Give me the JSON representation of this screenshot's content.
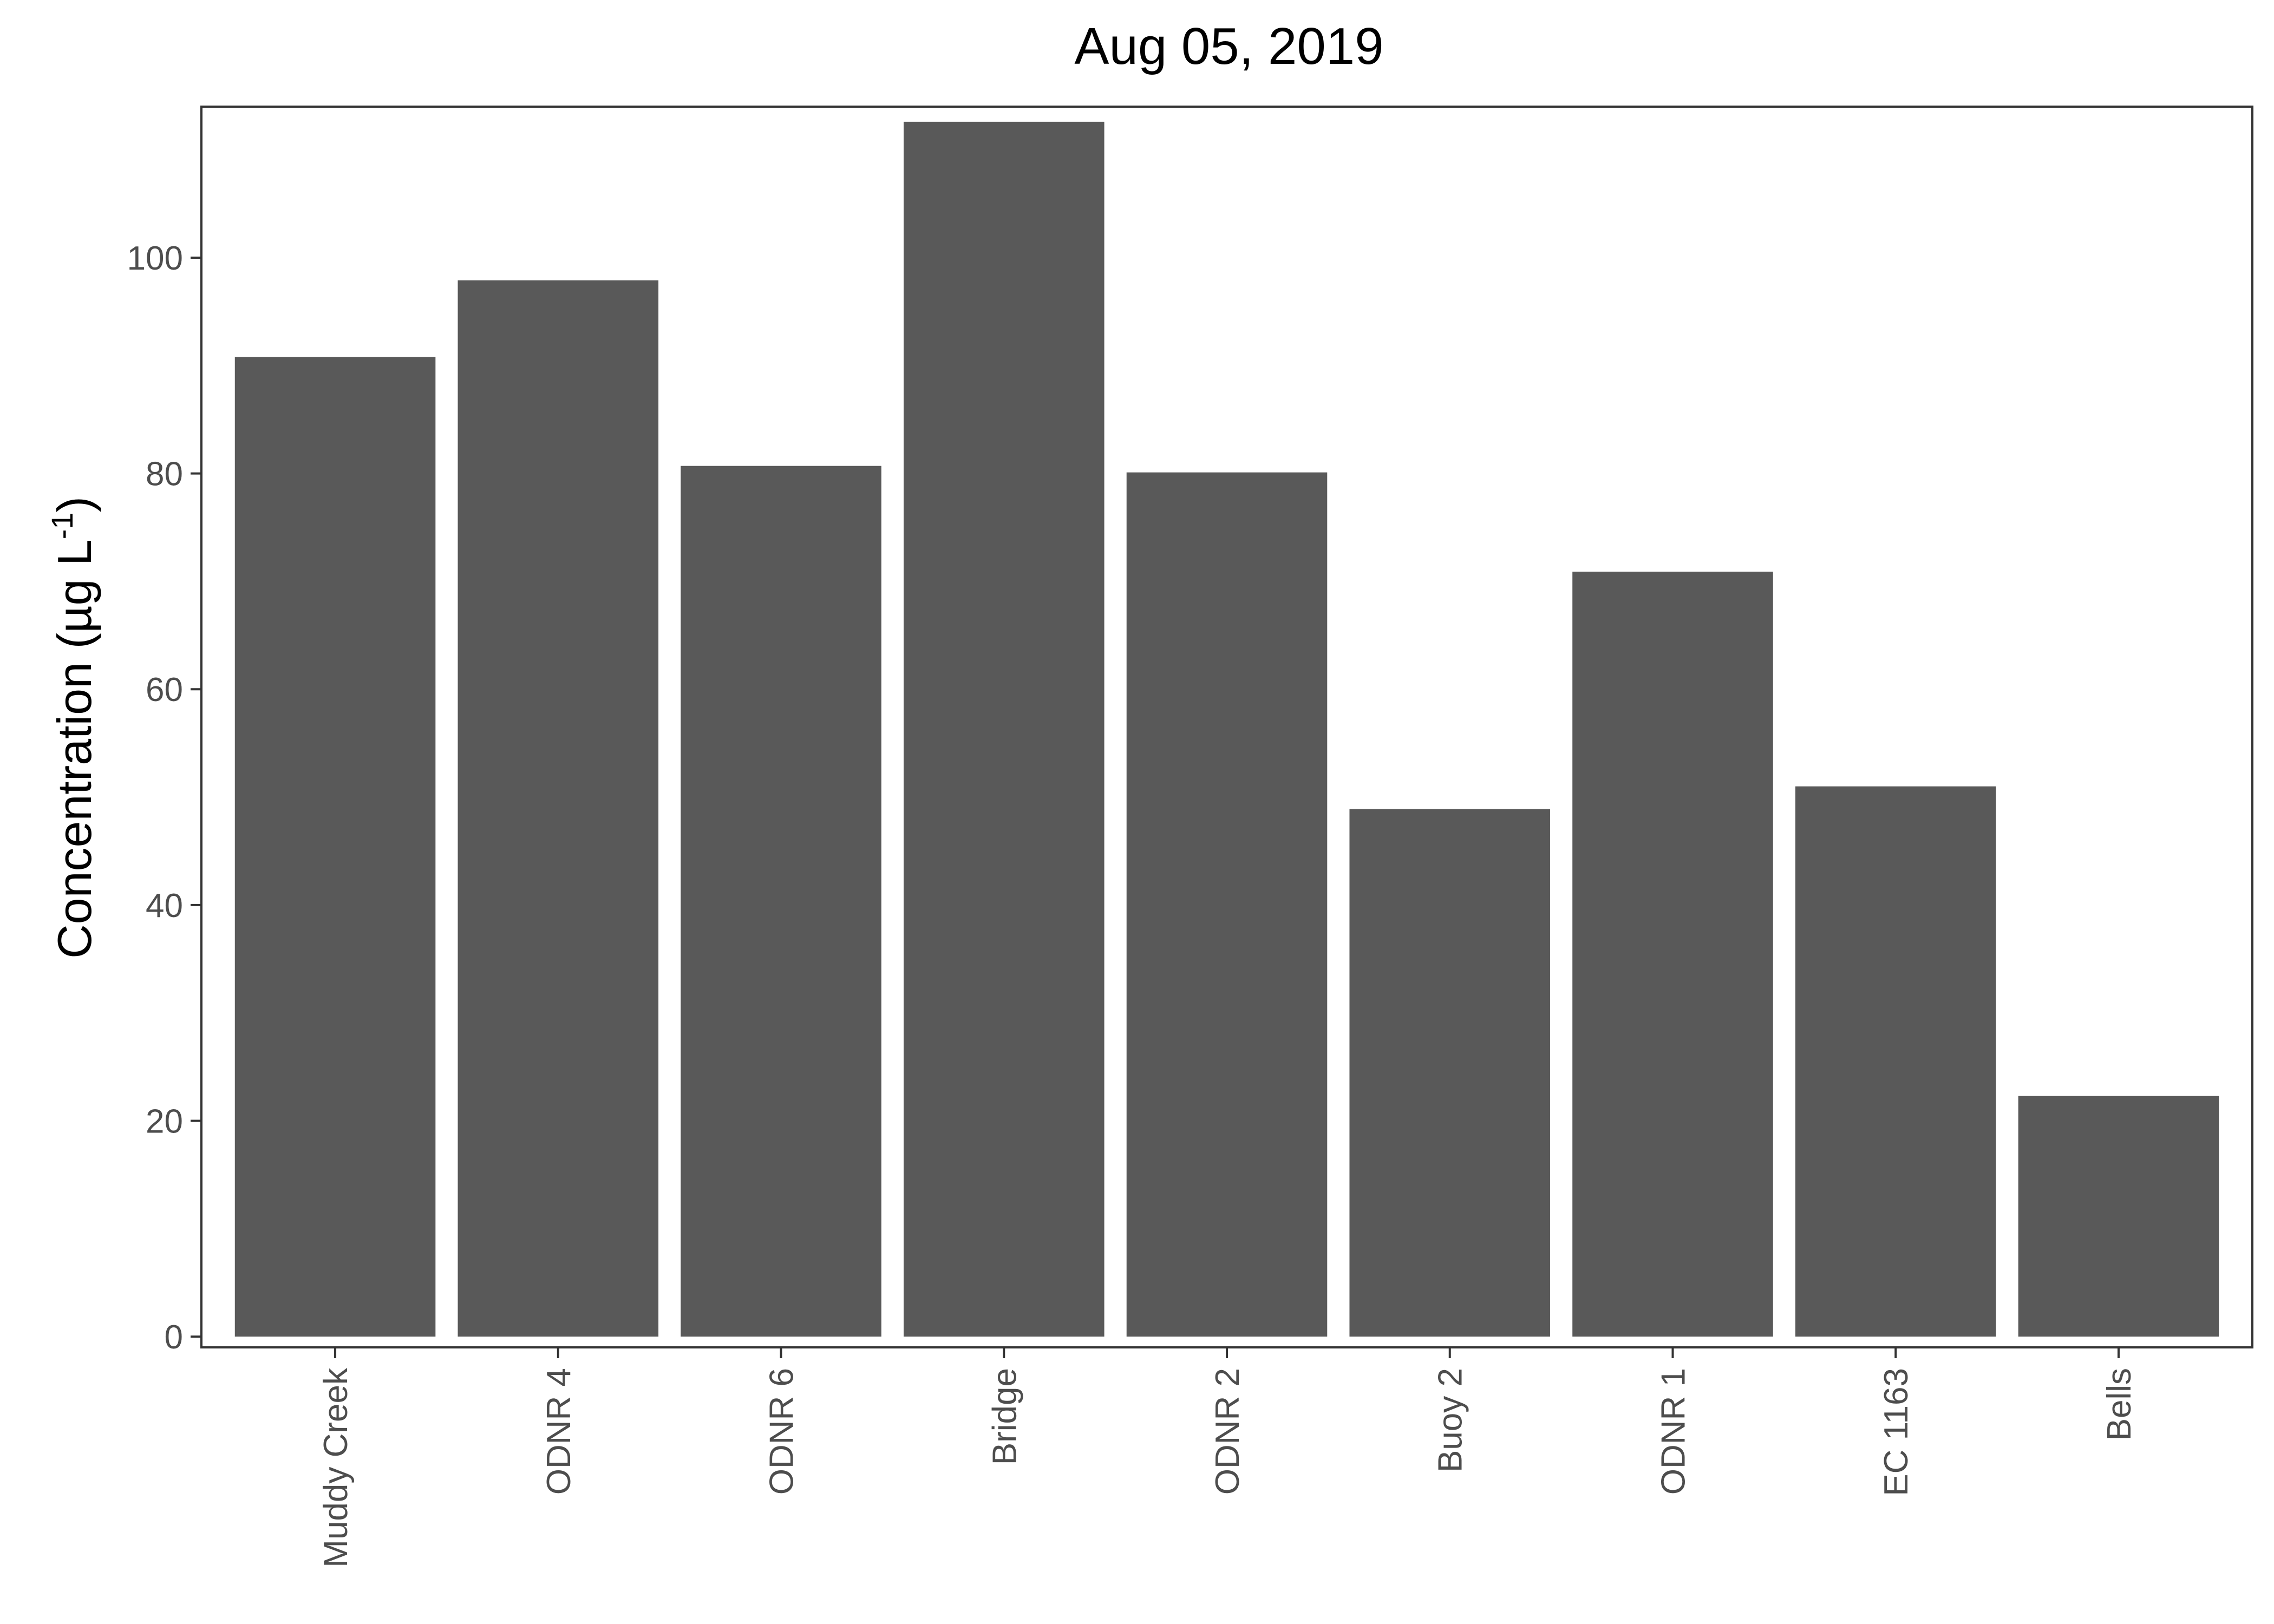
{
  "chart_data": {
    "type": "bar",
    "title": "Aug 05, 2019",
    "xlabel": "",
    "ylabel": "Concentration (µg L",
    "ylabel_superscript": "-1",
    "ylabel_suffix": ")",
    "categories": [
      "Muddy Creek",
      "ODNR 4",
      "ODNR 6",
      "Bridge",
      "ODNR 2",
      "Buoy 2",
      "ODNR 1",
      "EC 1163",
      "Bells"
    ],
    "values": [
      90.8,
      97.9,
      80.7,
      112.6,
      80.1,
      48.9,
      70.9,
      51.0,
      22.3
    ],
    "ylim": [
      -1.0,
      114
    ],
    "yticks": [
      0,
      20,
      40,
      60,
      80,
      100
    ],
    "grid": false,
    "legend": "none",
    "bar_color": "#595959"
  }
}
